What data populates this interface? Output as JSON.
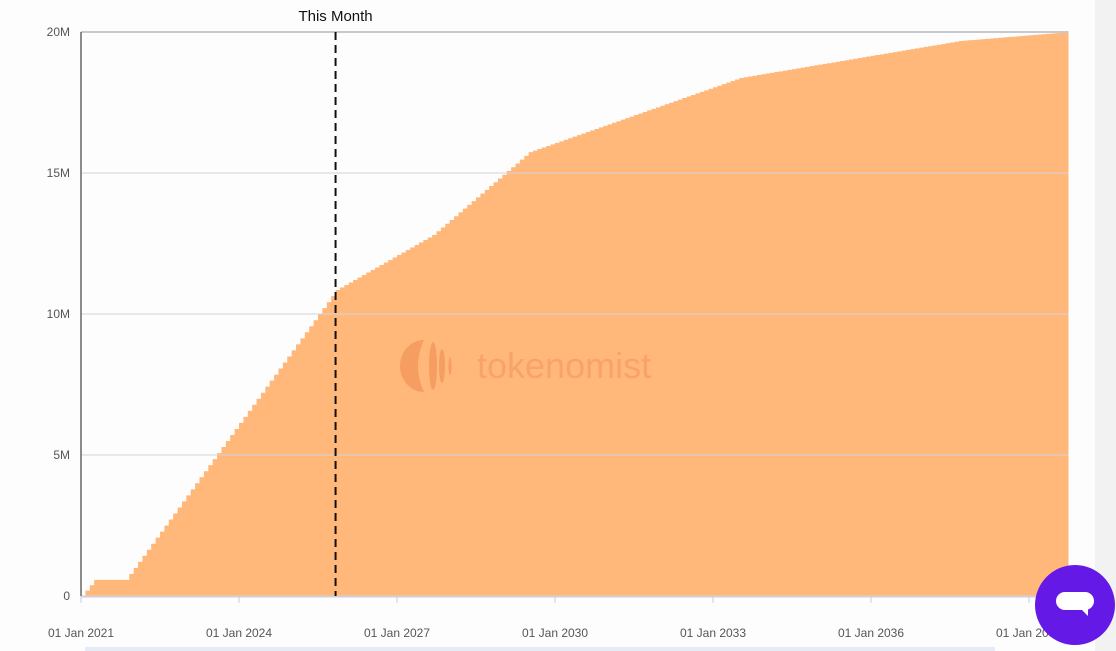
{
  "chart_data": {
    "type": "area",
    "title": "",
    "xlabel": "",
    "ylabel": "",
    "x_range": [
      "2021-01",
      "2039-10"
    ],
    "ylim": [
      0,
      20000000
    ],
    "y_ticks": [
      {
        "value": 0,
        "label": "0"
      },
      {
        "value": 5000000,
        "label": "5M"
      },
      {
        "value": 10000000,
        "label": "10M"
      },
      {
        "value": 15000000,
        "label": "15M"
      },
      {
        "value": 20000000,
        "label": "20M"
      }
    ],
    "x_ticks": [
      {
        "value": "2021-01",
        "label": "01 Jan 2021"
      },
      {
        "value": "2024-01",
        "label": "01 Jan 2024"
      },
      {
        "value": "2027-01",
        "label": "01 Jan 2027"
      },
      {
        "value": "2030-01",
        "label": "01 Jan 2030"
      },
      {
        "value": "2033-01",
        "label": "01 Jan 2033"
      },
      {
        "value": "2036-01",
        "label": "01 Jan 2036"
      },
      {
        "value": "2039-01",
        "label": "01 Jan 2039"
      }
    ],
    "grid": true,
    "step": "monthly",
    "series": [
      {
        "color": "#ffb77a",
        "points": [
          {
            "date": "2021-01",
            "value": 0
          },
          {
            "date": "2021-04",
            "value": 570000
          },
          {
            "date": "2021-11",
            "value": 570000
          },
          {
            "date": "2025-11",
            "value": 10850000
          },
          {
            "date": "2027-09",
            "value": 12800000
          },
          {
            "date": "2029-07",
            "value": 15740000
          },
          {
            "date": "2033-07",
            "value": 18370000
          },
          {
            "date": "2037-09",
            "value": 19680000
          },
          {
            "date": "2039-10",
            "value": 20000000
          }
        ]
      }
    ],
    "annotations": [
      {
        "date": "2025-11",
        "label": "This Month",
        "style": "dashed",
        "color": "#111111"
      }
    ]
  },
  "watermark": "tokenomist",
  "chat_button": {
    "icon": "chat-bubble-icon",
    "color": "#6519e6"
  }
}
